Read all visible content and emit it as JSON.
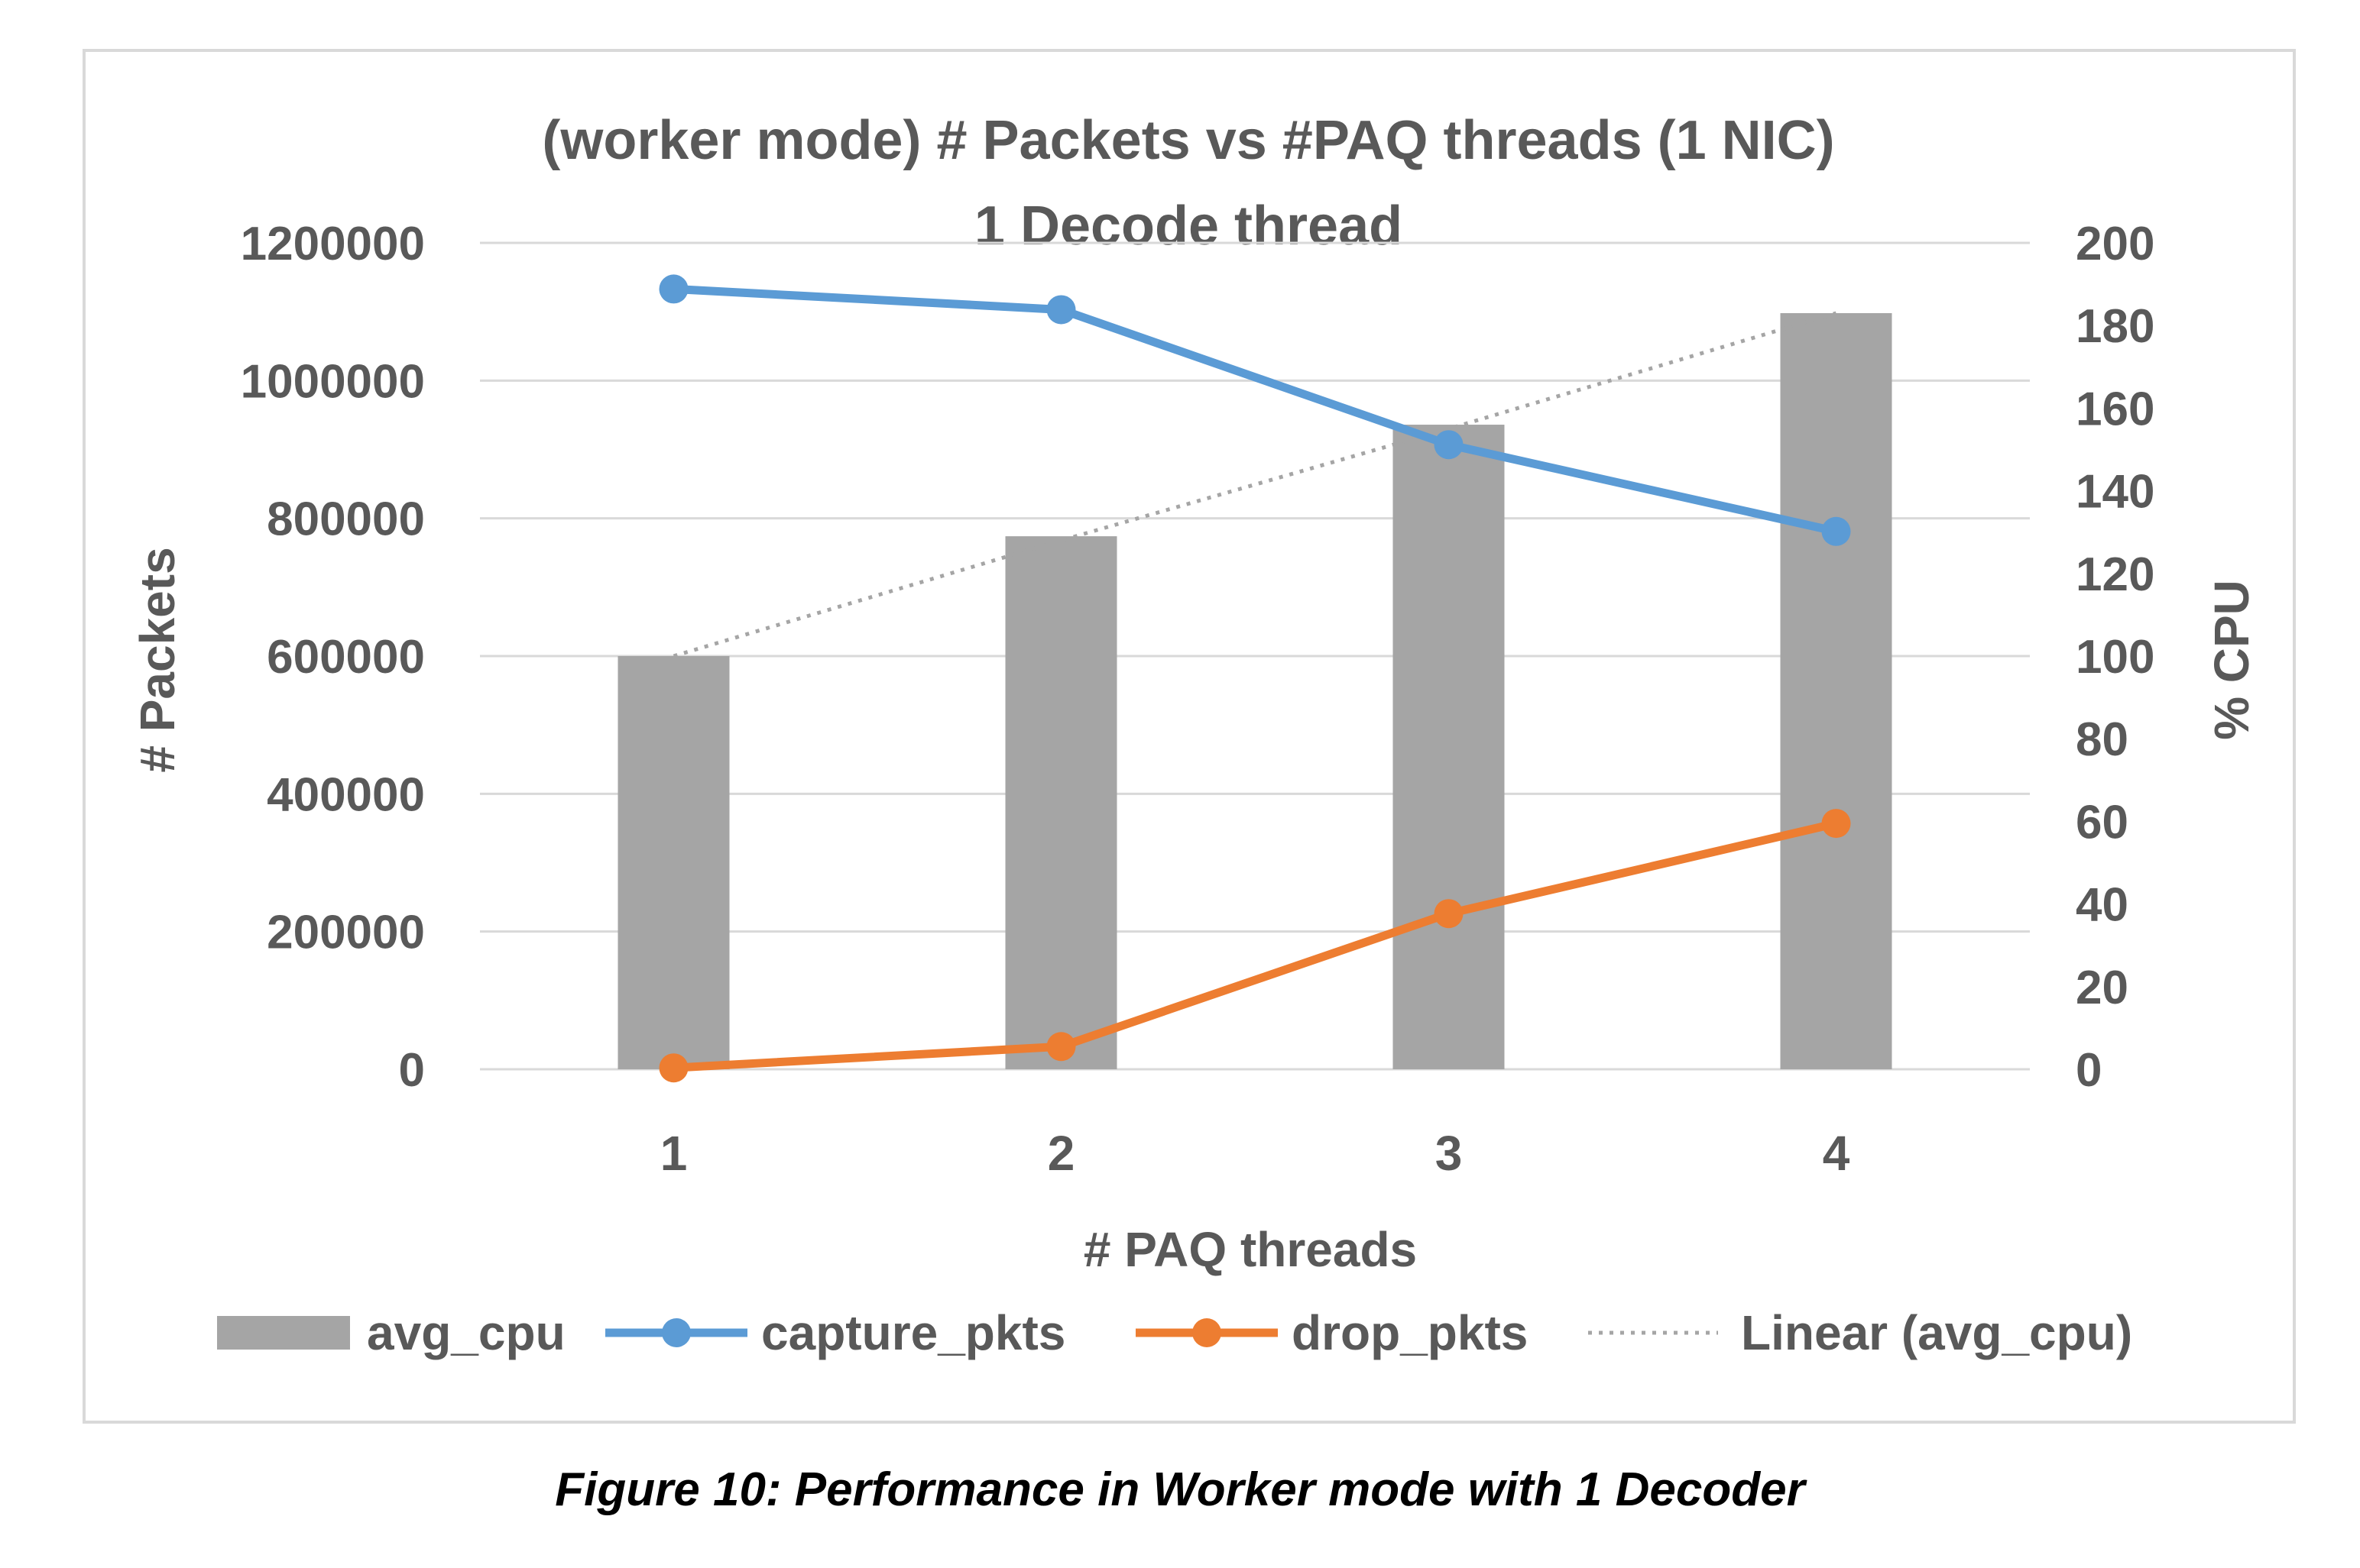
{
  "chart_data": {
    "type": "bar",
    "title_line1": "(worker mode) # Packets vs #PAQ threads  (1 NIC)",
    "title_line2": "1 Decode thread",
    "xlabel": "# PAQ threads",
    "ylabel_left": "# Packets",
    "ylabel_right": "% CPU",
    "categories": [
      "1",
      "2",
      "3",
      "4"
    ],
    "y_left_ticks": [
      "0",
      "200000",
      "400000",
      "600000",
      "800000",
      "1000000",
      "1200000"
    ],
    "y_right_ticks": [
      "0",
      "20",
      "40",
      "60",
      "80",
      "100",
      "120",
      "140",
      "160",
      "180",
      "200"
    ],
    "ylim_left": [
      0,
      1200000
    ],
    "ylim_right": [
      0,
      200
    ],
    "grid": true,
    "legend_position": "bottom",
    "series": [
      {
        "name": "avg_cpu",
        "kind": "bar",
        "axis": "right",
        "color": "#a5a5a5",
        "values": [
          100,
          129,
          156,
          183
        ]
      },
      {
        "name": "capture_pkts",
        "kind": "line",
        "axis": "left",
        "color": "#5b9bd5",
        "values": [
          1133000,
          1103000,
          907000,
          781000
        ]
      },
      {
        "name": "drop_pkts",
        "kind": "line",
        "axis": "left",
        "color": "#ed7d31",
        "values": [
          2000,
          33000,
          226000,
          357000
        ]
      },
      {
        "name": "Linear (avg_cpu)",
        "kind": "trendline",
        "axis": "right",
        "color": "#a5a5a5",
        "values": [
          100,
          128,
          155,
          183
        ]
      }
    ]
  },
  "caption": "Figure 10:  Performance in Worker mode with 1 Decoder"
}
